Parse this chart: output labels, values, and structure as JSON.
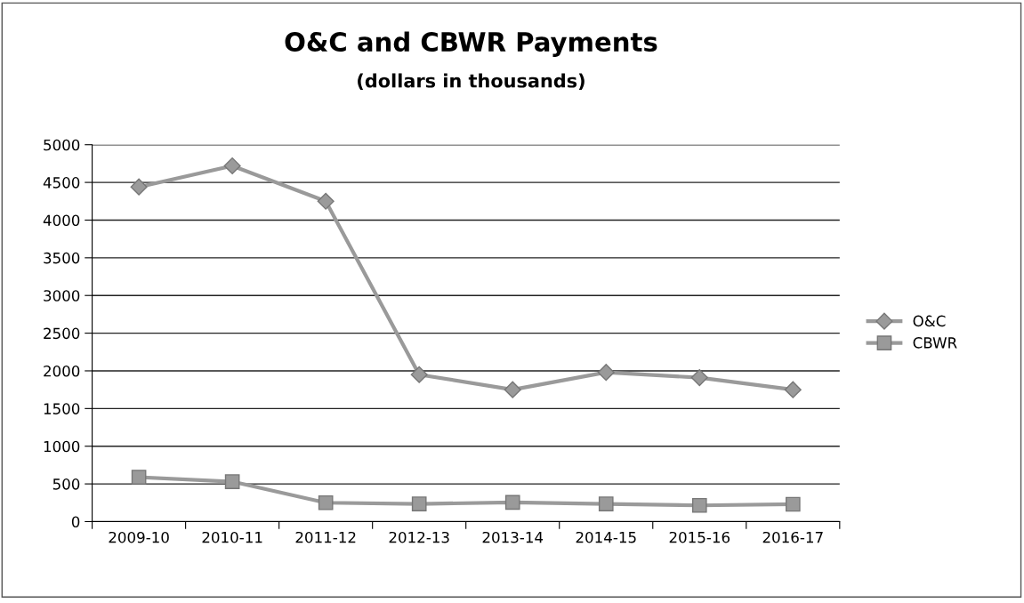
{
  "chart_data": {
    "type": "line",
    "title": "O&C and CBWR Payments",
    "subtitle": "(dollars in thousands)",
    "categories": [
      "2009-10",
      "2010-11",
      "2011-12",
      "2012-13",
      "2013-14",
      "2014-15",
      "2015-16",
      "2016-17"
    ],
    "series": [
      {
        "name": "O&C",
        "color": "#9a9a9a",
        "marker": "diamond",
        "values": [
          4440,
          4720,
          4250,
          1950,
          1750,
          1980,
          1910,
          1750
        ]
      },
      {
        "name": "CBWR",
        "color": "#9a9a9a",
        "marker": "square",
        "values": [
          590,
          530,
          250,
          235,
          255,
          235,
          215,
          230
        ]
      }
    ],
    "ylim": [
      0,
      5000
    ],
    "yticks": [
      0,
      500,
      1000,
      1500,
      2000,
      2500,
      3000,
      3500,
      4000,
      4500,
      5000
    ],
    "grid": "y",
    "legend": "right",
    "line_style": "solid"
  }
}
